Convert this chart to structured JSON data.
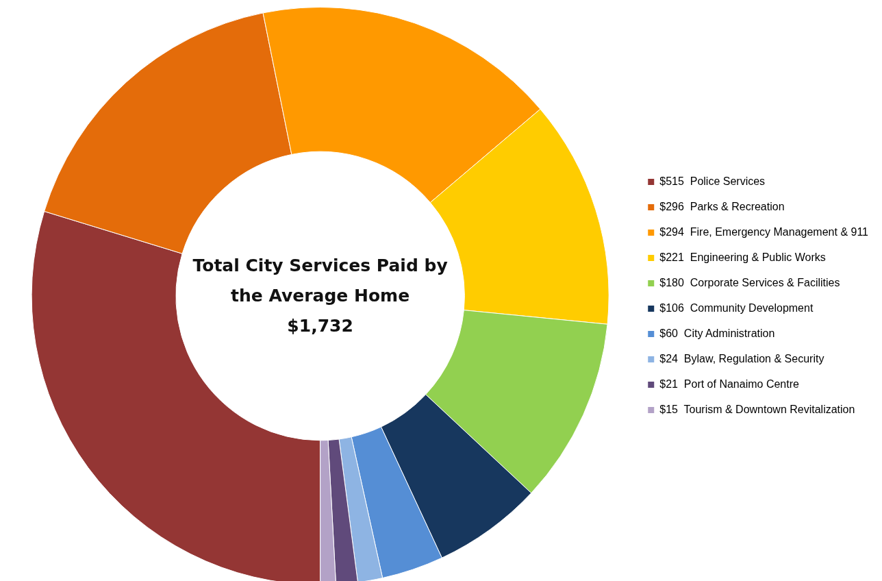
{
  "chart_data": {
    "type": "donut",
    "title": "Total City Services Paid by the Average Home",
    "annotations": [
      "$1,732"
    ],
    "categories": [
      "Police Services",
      "Parks & Recreation",
      "Fire, Emergency Management & 911",
      "Engineering & Public Works",
      "Corporate Services & Facilities",
      "Community Development",
      "City Administration",
      "Bylaw, Regulation & Security",
      "Port of Nanaimo Centre",
      "Tourism & Downtown Revitalization"
    ],
    "values": [
      515,
      296,
      294,
      221,
      180,
      106,
      60,
      24,
      21,
      15
    ],
    "value_labels": [
      "$515",
      "$296",
      "$294",
      "$221",
      "$180",
      "$106",
      "$60",
      "$24",
      "$21",
      "$15"
    ],
    "colors": [
      "#943634",
      "#e46c0a",
      "#ff9900",
      "#ffcc00",
      "#92d050",
      "#17375e",
      "#558ed5",
      "#8eb4e3",
      "#604a7b",
      "#b3a2c7"
    ],
    "legend": "right"
  }
}
